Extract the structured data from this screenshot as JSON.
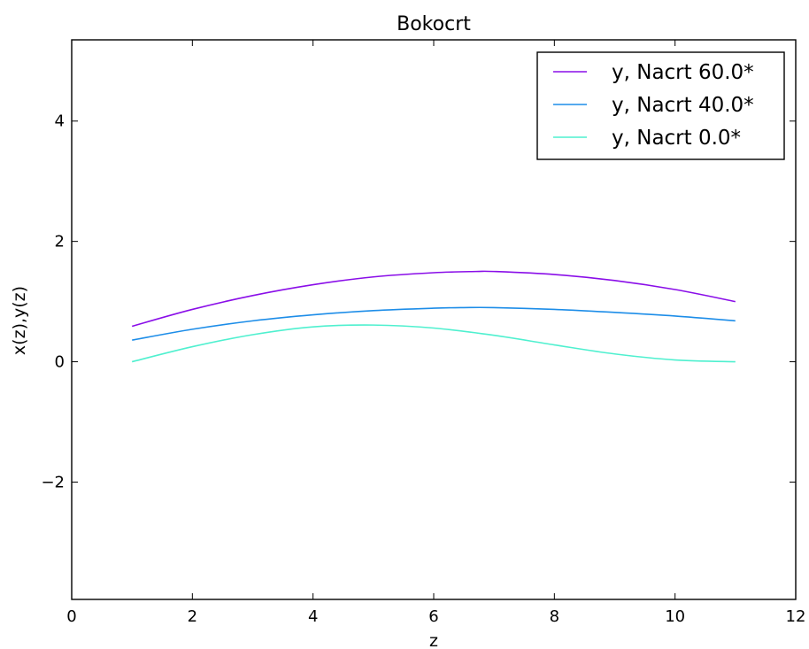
{
  "chart_data": {
    "type": "line",
    "title": "Bokocrt",
    "xlabel": "z",
    "ylabel": "x(z),y(z)",
    "xlim": [
      0,
      12
    ],
    "ylim": [
      -3.95,
      5.35
    ],
    "xticks": [
      0,
      2,
      4,
      6,
      8,
      10,
      12
    ],
    "xtick_labels": [
      "0",
      "2",
      "4",
      "6",
      "8",
      "10",
      "12"
    ],
    "yticks": [
      -2,
      0,
      2,
      4
    ],
    "ytick_labels": [
      "−2",
      "0",
      "2",
      "4"
    ],
    "grid": false,
    "legend_position": "top-right",
    "series": [
      {
        "name": "y, Nacrt 60.0*",
        "color": "#8a0ee8",
        "x": [
          1,
          2,
          3,
          4,
          5,
          6,
          6.7,
          7,
          8,
          9,
          10,
          11
        ],
        "y": [
          0.59,
          0.87,
          1.1,
          1.28,
          1.41,
          1.48,
          1.5,
          1.5,
          1.45,
          1.35,
          1.2,
          1.0
        ]
      },
      {
        "name": "y, Nacrt 40.0*",
        "color": "#1d8de8",
        "x": [
          1,
          2,
          3,
          4,
          5,
          6,
          6.5,
          7,
          8,
          9,
          10,
          11
        ],
        "y": [
          0.36,
          0.54,
          0.68,
          0.78,
          0.85,
          0.89,
          0.9,
          0.9,
          0.87,
          0.82,
          0.76,
          0.68
        ]
      },
      {
        "name": "y, Nacrt 0.0*",
        "color": "#4ff0cf",
        "x": [
          1,
          2,
          3,
          4,
          5,
          6,
          7,
          8,
          9,
          10,
          11
        ],
        "y": [
          0.0,
          0.25,
          0.45,
          0.58,
          0.61,
          0.56,
          0.44,
          0.28,
          0.13,
          0.03,
          0.0
        ]
      }
    ]
  }
}
